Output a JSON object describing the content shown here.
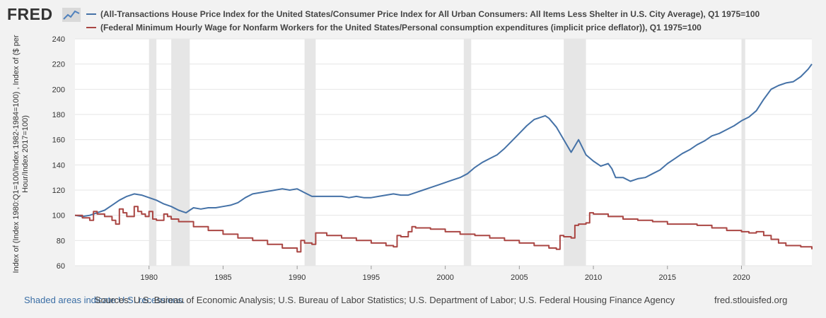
{
  "header": {
    "logo_text": "FRED",
    "logo_icon": "line-chart-icon"
  },
  "colors": {
    "series_house": "#4572a7",
    "series_wage": "#aa4643",
    "recession": "#e6e6e6",
    "grid": "#e6e6e6",
    "link": "#3a6ea5"
  },
  "chart_data": {
    "type": "line",
    "title": "",
    "xlabel": "",
    "ylabel": "Index of (Index 1980:Q1=100/Index 1982-1984=100) , Index of ($ per Hour/Index 2017=100)",
    "xlim": [
      1975.0,
      2024.75
    ],
    "ylim": [
      60,
      240
    ],
    "yticks": [
      60,
      80,
      100,
      120,
      140,
      160,
      180,
      200,
      220,
      240
    ],
    "xticks": [
      1980,
      1985,
      1990,
      1995,
      2000,
      2005,
      2010,
      2015,
      2020
    ],
    "recessions": [
      [
        1980.0,
        1980.5
      ],
      [
        1981.5,
        1982.75
      ],
      [
        1990.5,
        1991.25
      ],
      [
        2001.25,
        2001.75
      ],
      [
        2008.0,
        2009.5
      ],
      [
        2020.0,
        2020.25
      ]
    ],
    "series": [
      {
        "name": "(All-Transactions House Price Index for the United States/Consumer Price Index for All Urban Consumers: All Items Less Shelter in U.S. City Average), Q1 1975=100",
        "step": false,
        "x": [
          1975.0,
          1975.5,
          1976.0,
          1976.5,
          1977.0,
          1977.5,
          1978.0,
          1978.5,
          1979.0,
          1979.5,
          1980.0,
          1980.5,
          1981.0,
          1981.5,
          1982.0,
          1982.25,
          1982.5,
          1982.75,
          1983.0,
          1983.5,
          1984.0,
          1984.5,
          1985.0,
          1985.5,
          1986.0,
          1986.5,
          1987.0,
          1987.5,
          1988.0,
          1988.5,
          1989.0,
          1989.5,
          1990.0,
          1990.5,
          1991.0,
          1991.5,
          1992.0,
          1992.5,
          1993.0,
          1993.5,
          1994.0,
          1994.5,
          1995.0,
          1995.5,
          1996.0,
          1996.5,
          1997.0,
          1997.5,
          1998.0,
          1998.5,
          1999.0,
          1999.5,
          2000.0,
          2000.5,
          2001.0,
          2001.5,
          2002.0,
          2002.5,
          2003.0,
          2003.5,
          2004.0,
          2004.5,
          2005.0,
          2005.5,
          2006.0,
          2006.5,
          2006.75,
          2007.0,
          2007.5,
          2008.0,
          2008.5,
          2008.75,
          2009.0,
          2009.25,
          2009.5,
          2010.0,
          2010.5,
          2011.0,
          2011.25,
          2011.5,
          2012.0,
          2012.5,
          2013.0,
          2013.5,
          2014.0,
          2014.5,
          2015.0,
          2015.5,
          2016.0,
          2016.5,
          2017.0,
          2017.5,
          2018.0,
          2018.5,
          2019.0,
          2019.5,
          2020.0,
          2020.5,
          2021.0,
          2021.5,
          2022.0,
          2022.5,
          2023.0,
          2023.5,
          2024.0,
          2024.5,
          2024.75
        ],
        "values": [
          100,
          99,
          100,
          102,
          104,
          108,
          112,
          115,
          117,
          116,
          114,
          112,
          109,
          107,
          104,
          103,
          102,
          104,
          106,
          105,
          106,
          106,
          107,
          108,
          110,
          114,
          117,
          118,
          119,
          120,
          121,
          120,
          121,
          118,
          115,
          115,
          115,
          115,
          115,
          114,
          115,
          114,
          114,
          115,
          116,
          117,
          116,
          116,
          118,
          120,
          122,
          124,
          126,
          128,
          130,
          133,
          138,
          142,
          145,
          148,
          153,
          159,
          165,
          171,
          176,
          178,
          179,
          177,
          170,
          160,
          150,
          155,
          160,
          154,
          148,
          143,
          139,
          141,
          137,
          130,
          130,
          127,
          129,
          130,
          133,
          136,
          141,
          145,
          149,
          152,
          156,
          159,
          163,
          165,
          168,
          171,
          175,
          178,
          183,
          192,
          200,
          203,
          205,
          206,
          210,
          216,
          220
        ]
      },
      {
        "name": "(Federal Minimum Hourly Wage for Nonfarm Workers for the United States/Personal consumption expenditures (implicit price deflator)), Q1 1975=100",
        "step": true,
        "x": [
          1975.0,
          1975.5,
          1976.0,
          1976.25,
          1976.5,
          1977.0,
          1977.5,
          1977.75,
          1978.0,
          1978.25,
          1978.5,
          1979.0,
          1979.25,
          1979.5,
          1979.75,
          1980.0,
          1980.25,
          1980.5,
          1981.0,
          1981.25,
          1981.5,
          1982.0,
          1983.0,
          1984.0,
          1985.0,
          1986.0,
          1987.0,
          1988.0,
          1989.0,
          1990.0,
          1990.25,
          1990.5,
          1991.0,
          1991.25,
          1992.0,
          1993.0,
          1994.0,
          1995.0,
          1996.0,
          1996.5,
          1996.75,
          1997.0,
          1997.5,
          1997.75,
          1998.0,
          1999.0,
          2000.0,
          2001.0,
          2002.0,
          2003.0,
          2004.0,
          2005.0,
          2006.0,
          2007.0,
          2007.5,
          2007.75,
          2008.0,
          2008.5,
          2008.75,
          2009.0,
          2009.5,
          2009.75,
          2010.0,
          2011.0,
          2012.0,
          2013.0,
          2014.0,
          2015.0,
          2016.0,
          2017.0,
          2018.0,
          2019.0,
          2020.0,
          2020.5,
          2021.0,
          2021.5,
          2022.0,
          2022.5,
          2023.0,
          2024.0,
          2024.75
        ],
        "values": [
          100,
          98,
          96,
          103,
          101,
          99,
          96,
          93,
          105,
          102,
          99,
          107,
          103,
          101,
          99,
          103,
          97,
          96,
          101,
          99,
          97,
          95,
          91,
          88,
          85,
          82,
          80,
          77,
          74,
          71,
          80,
          78,
          77,
          86,
          84,
          82,
          80,
          78,
          76,
          75,
          84,
          83,
          87,
          91,
          90,
          89,
          87,
          85,
          84,
          82,
          80,
          78,
          76,
          74,
          73,
          84,
          83,
          82,
          92,
          93,
          94,
          102,
          101,
          99,
          97,
          96,
          95,
          93,
          93,
          92,
          90,
          88,
          87,
          86,
          87,
          84,
          81,
          78,
          76,
          75,
          73
        ]
      }
    ]
  },
  "footer": {
    "shaded_note": "Shaded areas indicate U.S. recessions.",
    "sources": "Sources: U.S. Bureau of Economic Analysis; U.S. Bureau of Labor Statistics; U.S. Department of Labor; U.S. Federal Housing Finance Agency",
    "site": "fred.stlouisfed.org"
  }
}
